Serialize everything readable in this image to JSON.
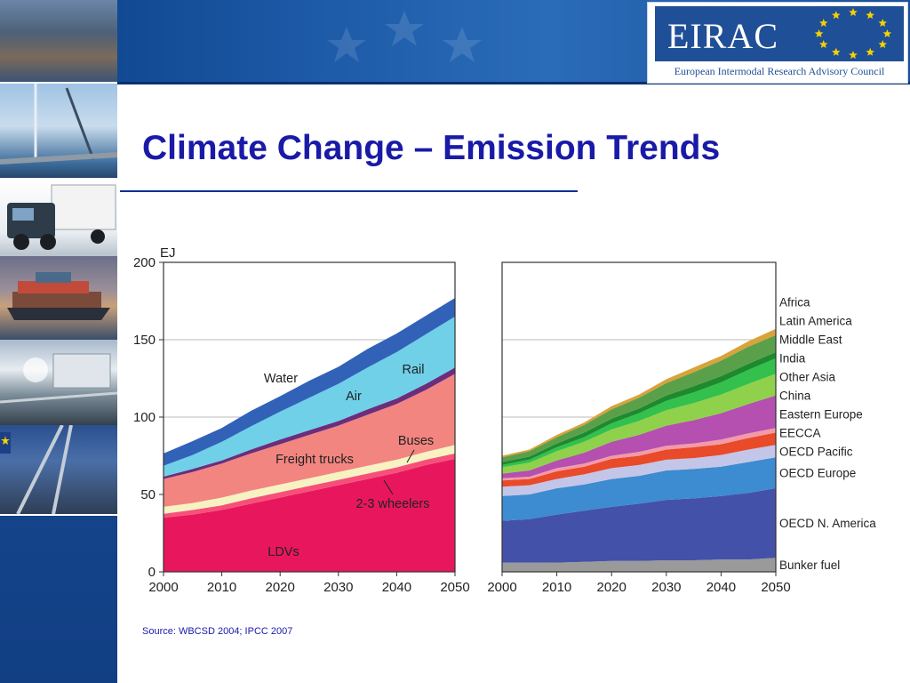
{
  "slide": {
    "title": "Climate Change – Emission Trends",
    "source": "Source: WBCSD 2004; IPCC 2007",
    "logo_text": "EIRAC",
    "logo_subtitle": "European Intermodal Research Advisory Council"
  },
  "colors": {
    "title": "#1a1aa8",
    "band": "#1b4f99",
    "logo": "#1f4f97"
  },
  "left_photos": [
    "port-photo",
    "crane-photo",
    "truck-photo",
    "ship-photo",
    "trailer-photo",
    "rail-photo"
  ],
  "chart_data": [
    {
      "type": "area",
      "stacked": true,
      "ylabel": "EJ",
      "xlabel": "",
      "ylim": [
        0,
        200
      ],
      "yticks": [
        0,
        50,
        100,
        150,
        200
      ],
      "xticks": [
        2000,
        2010,
        2020,
        2030,
        2040,
        2050
      ],
      "grid": true,
      "x": [
        2000,
        2005,
        2010,
        2015,
        2020,
        2025,
        2030,
        2035,
        2040,
        2045,
        2050
      ],
      "series": [
        {
          "name": "LDVs",
          "color": "#e8175d",
          "values": [
            35,
            37,
            40,
            44,
            48,
            52,
            56,
            60,
            64,
            69,
            73
          ]
        },
        {
          "name": "2-3  wheelers",
          "color": "#f6507a",
          "values": [
            2.5,
            3,
            3,
            3.5,
            3.5,
            3.5,
            3.5,
            3.5,
            3.5,
            3.5,
            3.5
          ]
        },
        {
          "name": "Buses",
          "color": "#f7f2c2",
          "values": [
            4.5,
            4.5,
            5,
            5,
            5,
            5,
            5,
            5,
            5,
            5,
            5.5
          ]
        },
        {
          "name": "Freight trucks",
          "color": "#f28580",
          "values": [
            18,
            20,
            22,
            24,
            26,
            28,
            30,
            33,
            36,
            40,
            46
          ]
        },
        {
          "name": "Air",
          "color": "#6b2d7c",
          "values": [
            1.5,
            2,
            2,
            2.5,
            3,
            3,
            3,
            3.5,
            3.5,
            4,
            4
          ]
        },
        {
          "name": "Rail",
          "color": "#6fd0e8",
          "values": [
            7,
            9,
            12,
            15,
            18,
            21,
            24,
            27,
            30,
            32,
            33
          ]
        },
        {
          "name": "Water",
          "color": "#3162b8",
          "values": [
            8,
            9,
            9,
            10,
            10,
            11,
            11,
            12,
            12,
            12,
            12
          ]
        }
      ],
      "annotations": [
        "Water",
        "Air",
        "Rail",
        "Freight trucks",
        "Buses",
        "2-3  wheelers",
        "LDVs"
      ]
    },
    {
      "type": "area",
      "stacked": true,
      "ylim": [
        0,
        200
      ],
      "xticks": [
        2000,
        2010,
        2020,
        2030,
        2040,
        2050
      ],
      "grid": true,
      "legend": "right",
      "x": [
        2000,
        2005,
        2010,
        2015,
        2020,
        2025,
        2030,
        2035,
        2040,
        2045,
        2050
      ],
      "series": [
        {
          "name": "Bunker fuel",
          "color": "#9a9a9a",
          "values": [
            6,
            6,
            6,
            6.5,
            7,
            7,
            7.5,
            7.5,
            8,
            8,
            9
          ]
        },
        {
          "name": "OECD N. America",
          "color": "#4451a8",
          "values": [
            27,
            28,
            31,
            33,
            35,
            37,
            39,
            40,
            41,
            43,
            45
          ]
        },
        {
          "name": "OECD Europe",
          "color": "#3d8bd0",
          "values": [
            16,
            16,
            17,
            17,
            18,
            18,
            19,
            19,
            19,
            20,
            20
          ]
        },
        {
          "name": "OECD Pacific",
          "color": "#c3c6e8",
          "values": [
            6,
            6,
            6,
            6.5,
            7,
            7,
            7,
            7,
            7.5,
            8,
            8
          ]
        },
        {
          "name": "EECCA",
          "color": "#e84a2a",
          "values": [
            4,
            4,
            5,
            5,
            6,
            6,
            6.5,
            7,
            7,
            7.5,
            8
          ]
        },
        {
          "name": "Eastern Europe",
          "color": "#f39aa8",
          "values": [
            1.5,
            1.5,
            2,
            2,
            2,
            2.5,
            2.5,
            2.5,
            3,
            3,
            3
          ]
        },
        {
          "name": "China",
          "color": "#b54fb0",
          "values": [
            3,
            4,
            5,
            7,
            9,
            11,
            13,
            15,
            17,
            19,
            21
          ]
        },
        {
          "name": "Other Asia",
          "color": "#8fd14a",
          "values": [
            4,
            5,
            6,
            7,
            8,
            9,
            10,
            11,
            12,
            13,
            14
          ]
        },
        {
          "name": "India",
          "color": "#33c04d",
          "values": [
            1.5,
            2,
            2.5,
            3,
            4,
            5,
            6,
            7,
            8,
            9,
            10
          ]
        },
        {
          "name": "Middle East",
          "color": "#1e8a2e",
          "values": [
            2,
            2,
            2.5,
            3,
            3,
            3,
            3.5,
            4,
            4,
            4,
            4
          ]
        },
        {
          "name": "Latin America",
          "color": "#5aa04a",
          "values": [
            3,
            3.5,
            4,
            5,
            6,
            7,
            8,
            9,
            10,
            11,
            11
          ]
        },
        {
          "name": "Africa",
          "color": "#d9a23a",
          "values": [
            1,
            1,
            1.5,
            1.5,
            2,
            2,
            2.5,
            3,
            3,
            3.5,
            4
          ]
        }
      ]
    }
  ]
}
